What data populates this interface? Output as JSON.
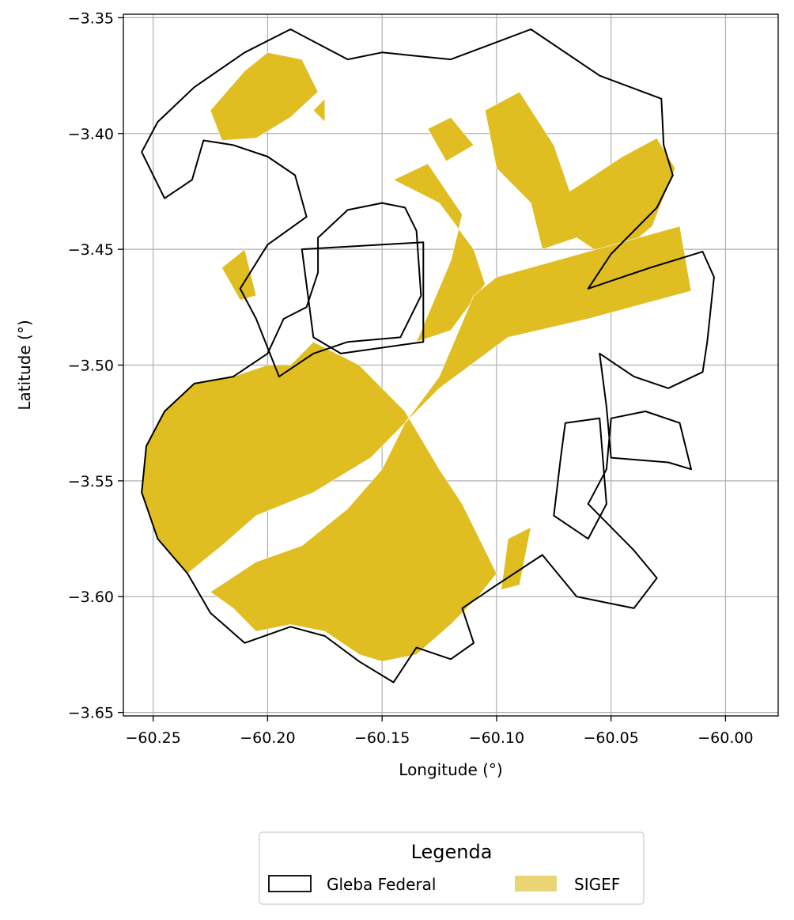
{
  "colors": {
    "sigef_fill": "#e0bd20",
    "sigef_legend": "#e9d476",
    "gleba_stroke": "#000000",
    "grid": "#b0b0b0",
    "background": "#ffffff"
  },
  "chart_data": {
    "type": "map",
    "xlabel": "Longitude (°)",
    "ylabel": "Latitude (°)",
    "xlim": [
      -60.263,
      -59.977
    ],
    "ylim": [
      -3.6515,
      -3.3485
    ],
    "grid": true,
    "x_ticks": [
      {
        "value": -60.25,
        "label": "−60.25"
      },
      {
        "value": -60.2,
        "label": "−60.20"
      },
      {
        "value": -60.15,
        "label": "−60.15"
      },
      {
        "value": -60.1,
        "label": "−60.10"
      },
      {
        "value": -60.05,
        "label": "−60.05"
      },
      {
        "value": -60.0,
        "label": "−60.00"
      }
    ],
    "y_ticks": [
      {
        "value": -3.35,
        "label": "−3.35"
      },
      {
        "value": -3.4,
        "label": "−3.40"
      },
      {
        "value": -3.45,
        "label": "−3.45"
      },
      {
        "value": -3.5,
        "label": "−3.50"
      },
      {
        "value": -3.55,
        "label": "−3.55"
      },
      {
        "value": -3.6,
        "label": "−3.60"
      },
      {
        "value": -3.65,
        "label": "−3.65"
      }
    ],
    "legend": {
      "title": "Legenda",
      "placement": "bottom-center",
      "entries": [
        {
          "label": "Gleba Federal",
          "style": "outline"
        },
        {
          "label": "SIGEF",
          "style": "fill"
        }
      ]
    },
    "layers": {
      "gleba_federal": [
        [
          [
            -60.21,
            -3.365
          ],
          [
            -60.19,
            -3.355
          ],
          [
            -60.165,
            -3.368
          ],
          [
            -60.15,
            -3.365
          ],
          [
            -60.12,
            -3.368
          ],
          [
            -60.085,
            -3.355
          ],
          [
            -60.055,
            -3.375
          ],
          [
            -60.028,
            -3.385
          ],
          [
            -60.027,
            -3.405
          ],
          [
            -60.023,
            -3.418
          ],
          [
            -60.03,
            -3.432
          ],
          [
            -60.05,
            -3.452
          ],
          [
            -60.06,
            -3.467
          ],
          [
            -60.033,
            -3.458
          ],
          [
            -60.01,
            -3.451
          ],
          [
            -60.005,
            -3.462
          ],
          [
            -60.008,
            -3.49
          ],
          [
            -60.01,
            -3.503
          ],
          [
            -60.025,
            -3.51
          ],
          [
            -60.04,
            -3.505
          ],
          [
            -60.055,
            -3.495
          ],
          [
            -60.052,
            -3.518
          ],
          [
            -60.05,
            -3.54
          ],
          [
            -60.025,
            -3.542
          ],
          [
            -60.015,
            -3.545
          ],
          [
            -60.02,
            -3.525
          ],
          [
            -60.035,
            -3.52
          ],
          [
            -60.05,
            -3.523
          ],
          [
            -60.052,
            -3.545
          ],
          [
            -60.06,
            -3.56
          ],
          [
            -60.04,
            -3.58
          ],
          [
            -60.03,
            -3.592
          ],
          [
            -60.04,
            -3.605
          ],
          [
            -60.065,
            -3.6
          ],
          [
            -60.08,
            -3.582
          ],
          [
            -60.1,
            -3.595
          ],
          [
            -60.115,
            -3.605
          ],
          [
            -60.11,
            -3.62
          ],
          [
            -60.12,
            -3.627
          ],
          [
            -60.135,
            -3.622
          ],
          [
            -60.145,
            -3.637
          ],
          [
            -60.16,
            -3.628
          ],
          [
            -60.175,
            -3.617
          ],
          [
            -60.19,
            -3.613
          ],
          [
            -60.21,
            -3.62
          ],
          [
            -60.225,
            -3.607
          ],
          [
            -60.235,
            -3.59
          ],
          [
            -60.248,
            -3.575
          ],
          [
            -60.255,
            -3.555
          ],
          [
            -60.253,
            -3.535
          ],
          [
            -60.245,
            -3.52
          ],
          [
            -60.232,
            -3.508
          ],
          [
            -60.215,
            -3.505
          ],
          [
            -60.2,
            -3.495
          ],
          [
            -60.193,
            -3.48
          ],
          [
            -60.183,
            -3.475
          ],
          [
            -60.178,
            -3.46
          ],
          [
            -60.178,
            -3.445
          ],
          [
            -60.165,
            -3.433
          ],
          [
            -60.15,
            -3.43
          ],
          [
            -60.14,
            -3.432
          ],
          [
            -60.135,
            -3.442
          ],
          [
            -60.133,
            -3.47
          ],
          [
            -60.142,
            -3.488
          ],
          [
            -60.165,
            -3.49
          ],
          [
            -60.18,
            -3.495
          ],
          [
            -60.195,
            -3.505
          ],
          [
            -60.205,
            -3.48
          ],
          [
            -60.212,
            -3.467
          ],
          [
            -60.2,
            -3.448
          ],
          [
            -60.183,
            -3.436
          ],
          [
            -60.188,
            -3.418
          ],
          [
            -60.2,
            -3.41
          ],
          [
            -60.215,
            -3.405
          ],
          [
            -60.228,
            -3.403
          ],
          [
            -60.233,
            -3.42
          ],
          [
            -60.245,
            -3.428
          ],
          [
            -60.255,
            -3.408
          ],
          [
            -60.248,
            -3.395
          ],
          [
            -60.232,
            -3.38
          ],
          [
            -60.21,
            -3.365
          ]
        ],
        [
          [
            -60.185,
            -3.45
          ],
          [
            -60.132,
            -3.447
          ],
          [
            -60.132,
            -3.49
          ],
          [
            -60.168,
            -3.495
          ],
          [
            -60.18,
            -3.488
          ],
          [
            -60.185,
            -3.45
          ]
        ],
        [
          [
            -60.07,
            -3.525
          ],
          [
            -60.055,
            -3.523
          ],
          [
            -60.052,
            -3.56
          ],
          [
            -60.06,
            -3.575
          ],
          [
            -60.075,
            -3.565
          ],
          [
            -60.072,
            -3.54
          ],
          [
            -60.07,
            -3.525
          ]
        ]
      ],
      "sigef": [
        [
          [
            -60.21,
            -3.373
          ],
          [
            -60.2,
            -3.365
          ],
          [
            -60.185,
            -3.368
          ],
          [
            -60.178,
            -3.382
          ],
          [
            -60.19,
            -3.393
          ],
          [
            -60.205,
            -3.402
          ],
          [
            -60.22,
            -3.403
          ],
          [
            -60.225,
            -3.39
          ],
          [
            -60.21,
            -3.373
          ]
        ],
        [
          [
            -60.175,
            -3.385
          ],
          [
            -60.175,
            -3.395
          ],
          [
            -60.18,
            -3.39
          ],
          [
            -60.175,
            -3.385
          ]
        ],
        [
          [
            -60.145,
            -3.42
          ],
          [
            -60.13,
            -3.413
          ],
          [
            -60.115,
            -3.435
          ],
          [
            -60.12,
            -3.455
          ],
          [
            -60.135,
            -3.49
          ],
          [
            -60.12,
            -3.485
          ],
          [
            -60.105,
            -3.465
          ],
          [
            -60.11,
            -3.45
          ],
          [
            -60.125,
            -3.43
          ],
          [
            -60.145,
            -3.42
          ]
        ],
        [
          [
            -60.105,
            -3.39
          ],
          [
            -60.09,
            -3.382
          ],
          [
            -60.075,
            -3.405
          ],
          [
            -60.068,
            -3.425
          ],
          [
            -60.045,
            -3.41
          ],
          [
            -60.03,
            -3.402
          ],
          [
            -60.022,
            -3.415
          ],
          [
            -60.032,
            -3.44
          ],
          [
            -60.05,
            -3.455
          ],
          [
            -60.065,
            -3.445
          ],
          [
            -60.08,
            -3.45
          ],
          [
            -60.085,
            -3.43
          ],
          [
            -60.1,
            -3.415
          ],
          [
            -60.105,
            -3.39
          ]
        ],
        [
          [
            -60.13,
            -3.398
          ],
          [
            -60.12,
            -3.393
          ],
          [
            -60.11,
            -3.405
          ],
          [
            -60.122,
            -3.412
          ],
          [
            -60.13,
            -3.398
          ]
        ],
        [
          [
            -60.22,
            -3.458
          ],
          [
            -60.21,
            -3.45
          ],
          [
            -60.205,
            -3.47
          ],
          [
            -60.212,
            -3.472
          ],
          [
            -60.22,
            -3.458
          ]
        ],
        [
          [
            -60.11,
            -3.47
          ],
          [
            -60.1,
            -3.462
          ],
          [
            -60.02,
            -3.44
          ],
          [
            -60.015,
            -3.468
          ],
          [
            -60.06,
            -3.48
          ],
          [
            -60.095,
            -3.488
          ],
          [
            -60.125,
            -3.51
          ],
          [
            -60.155,
            -3.54
          ],
          [
            -60.18,
            -3.555
          ],
          [
            -60.205,
            -3.565
          ],
          [
            -60.22,
            -3.578
          ],
          [
            -60.235,
            -3.59
          ],
          [
            -60.248,
            -3.575
          ],
          [
            -60.255,
            -3.555
          ],
          [
            -60.253,
            -3.535
          ],
          [
            -60.245,
            -3.52
          ],
          [
            -60.232,
            -3.508
          ],
          [
            -60.215,
            -3.505
          ],
          [
            -60.2,
            -3.5
          ],
          [
            -60.19,
            -3.5
          ],
          [
            -60.18,
            -3.49
          ],
          [
            -60.16,
            -3.5
          ],
          [
            -60.14,
            -3.52
          ],
          [
            -60.125,
            -3.545
          ],
          [
            -60.115,
            -3.56
          ],
          [
            -60.1,
            -3.59
          ],
          [
            -60.108,
            -3.6
          ],
          [
            -60.12,
            -3.612
          ],
          [
            -60.135,
            -3.625
          ],
          [
            -60.15,
            -3.628
          ],
          [
            -60.16,
            -3.625
          ],
          [
            -60.175,
            -3.615
          ],
          [
            -60.19,
            -3.612
          ],
          [
            -60.205,
            -3.615
          ],
          [
            -60.215,
            -3.605
          ],
          [
            -60.225,
            -3.598
          ],
          [
            -60.205,
            -3.585
          ],
          [
            -60.185,
            -3.578
          ],
          [
            -60.165,
            -3.562
          ],
          [
            -60.15,
            -3.545
          ],
          [
            -60.14,
            -3.525
          ],
          [
            -60.125,
            -3.505
          ],
          [
            -60.11,
            -3.47
          ]
        ],
        [
          [
            -60.095,
            -3.575
          ],
          [
            -60.085,
            -3.57
          ],
          [
            -60.09,
            -3.595
          ],
          [
            -60.098,
            -3.597
          ],
          [
            -60.095,
            -3.575
          ]
        ]
      ]
    }
  }
}
